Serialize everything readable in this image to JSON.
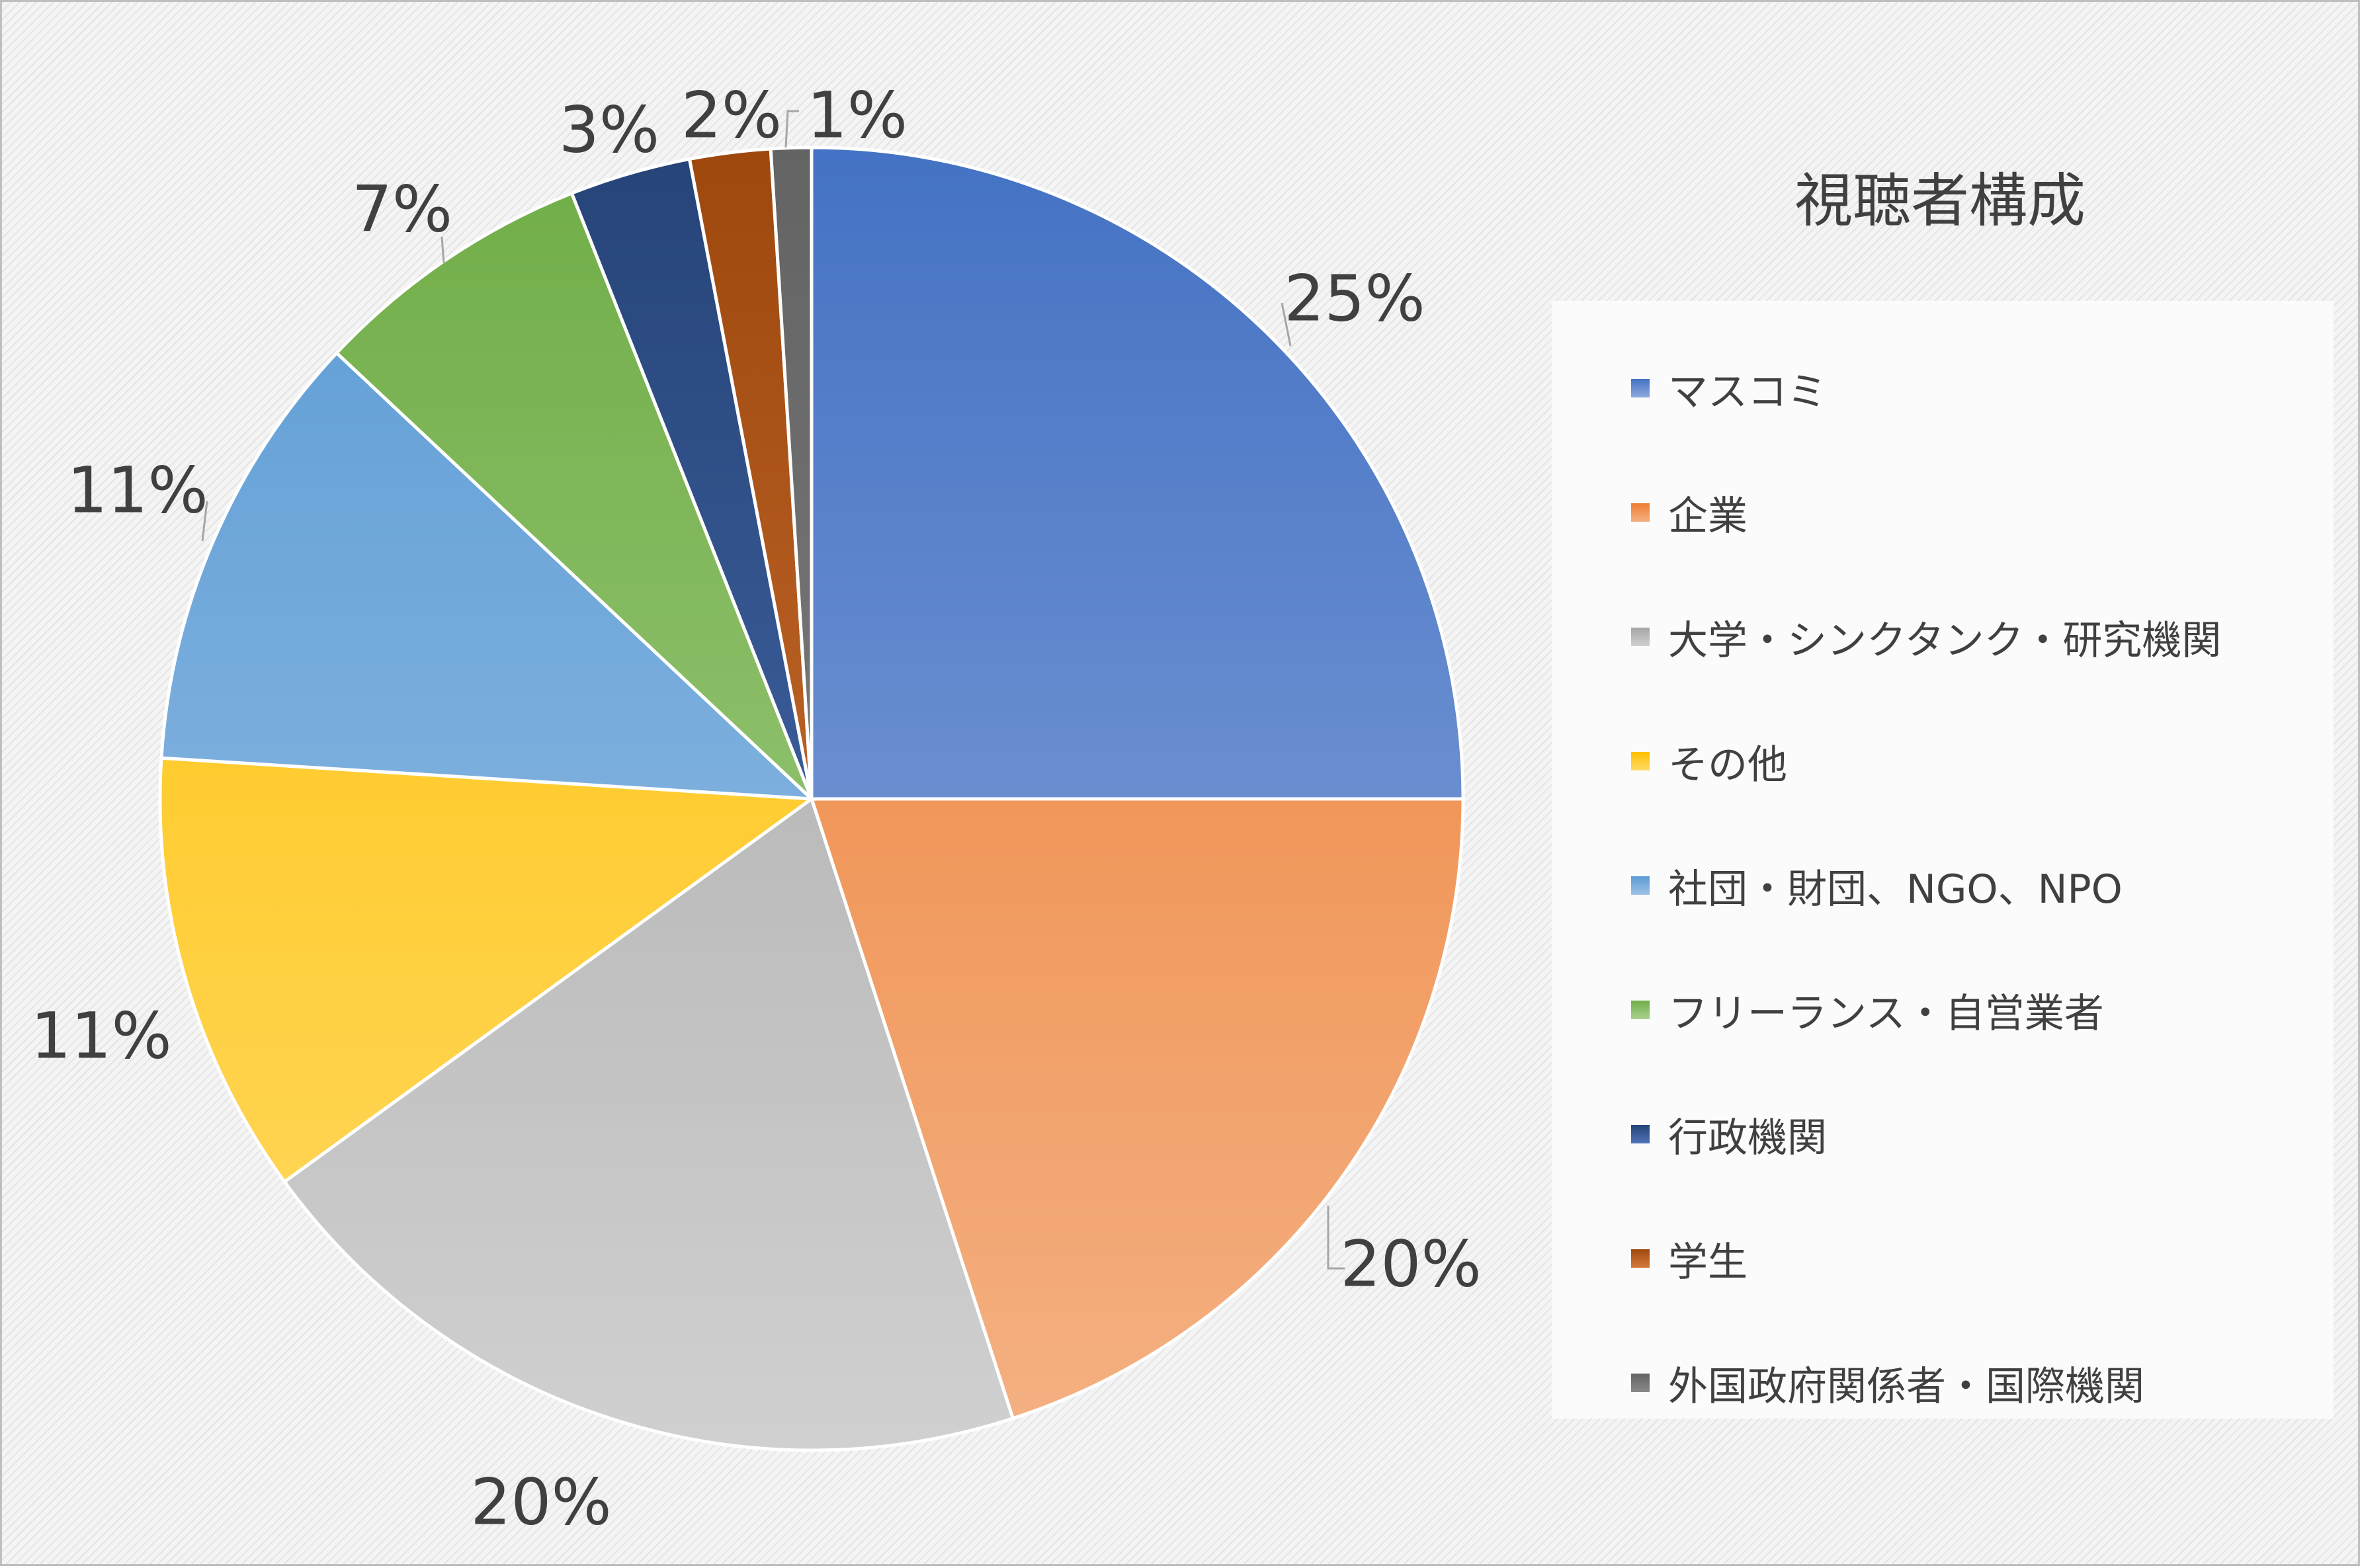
{
  "chart_data": {
    "type": "pie",
    "title": "視聴者構成",
    "legend_position": "right",
    "slices": [
      {
        "name": "マスコミ",
        "value": 25,
        "label": "25%",
        "color": "#4472c4",
        "color_light": "#8faadc"
      },
      {
        "name": "企業",
        "value": 20,
        "label": "20%",
        "color": "#ed7d31",
        "color_light": "#f4b183"
      },
      {
        "name": "大学・シンクタンク・研究機関",
        "value": 20,
        "label": "20%",
        "color": "#a5a5a5",
        "color_light": "#d0d0d0"
      },
      {
        "name": "その他",
        "value": 11,
        "label": "11%",
        "color": "#ffc000",
        "color_light": "#ffd966"
      },
      {
        "name": "社団・財団、NGO、NPO",
        "value": 11,
        "label": "11%",
        "color": "#5b9bd5",
        "color_light": "#9dc3e6"
      },
      {
        "name": "フリーランス・自営業者",
        "value": 7,
        "label": "7%",
        "color": "#70ad47",
        "color_light": "#a9d18e"
      },
      {
        "name": "行政機関",
        "value": 3,
        "label": "3%",
        "color": "#264478",
        "color_light": "#4e72b8"
      },
      {
        "name": "学生",
        "value": 2,
        "label": "2%",
        "color": "#9e480e",
        "color_light": "#d57a3c"
      },
      {
        "name": "外国政府関係者・国際機関",
        "value": 1,
        "label": "1%",
        "color": "#636363",
        "color_light": "#8a8a8a"
      }
    ]
  }
}
